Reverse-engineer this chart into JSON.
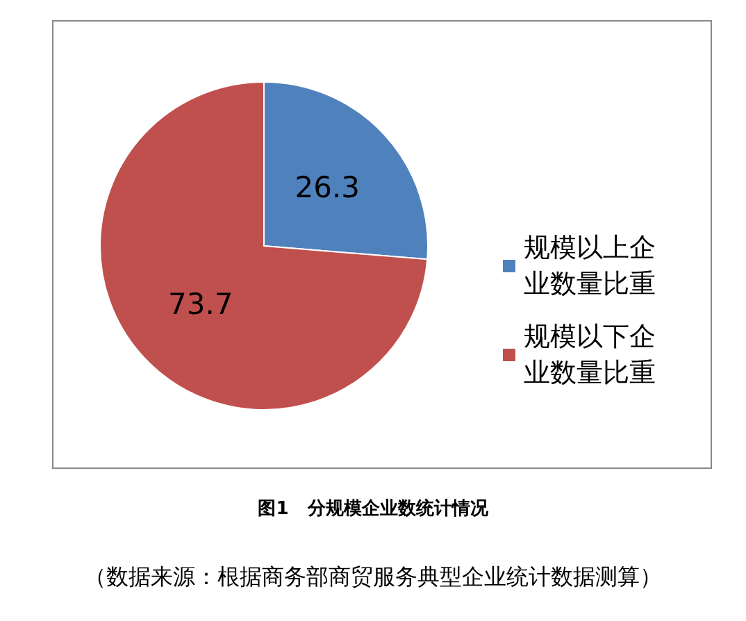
{
  "chart_data": {
    "type": "pie",
    "title": "图1   分规模企业数统计情况",
    "annotations": [
      "（数据来源：根据商务部商贸服务典型企业统计数据测算）"
    ],
    "categories": [
      "规模以上企业数量比重",
      "规模以下企业数量比重"
    ],
    "values": [
      26.3,
      73.7
    ],
    "colors": [
      "#4f81bd",
      "#c0504d"
    ],
    "data_labels": true,
    "legend": "right"
  }
}
